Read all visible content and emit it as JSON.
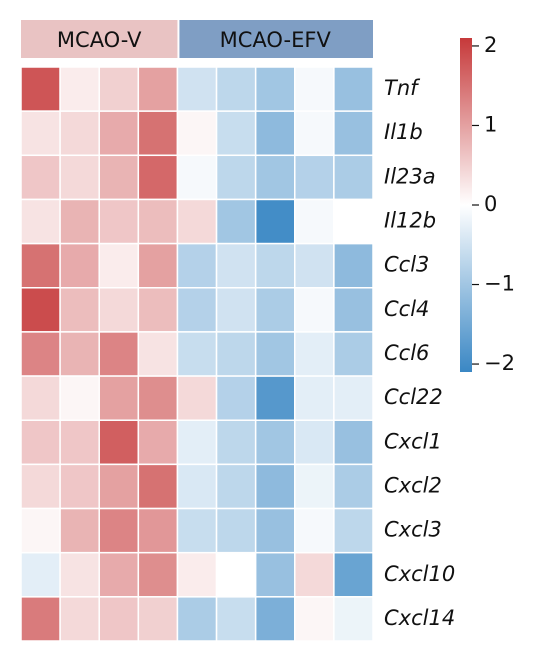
{
  "chart_data": {
    "type": "heatmap",
    "groups": [
      {
        "name": "MCAO-V",
        "columns": 4,
        "color": "#e9c3c3"
      },
      {
        "name": "MCAO-EFV",
        "columns": 5,
        "color": "#7f9ec4"
      }
    ],
    "rows": [
      "Tnf",
      "Il1b",
      "Il23a",
      "Il12b",
      "Ccl3",
      "Ccl4",
      "Ccl6",
      "Ccl22",
      "Cxcl1",
      "Cxcl2",
      "Cxcl3",
      "Cxcl10",
      "Cxcl14"
    ],
    "values": [
      [
        1.8,
        0.2,
        0.5,
        1.0,
        -0.5,
        -0.7,
        -1.0,
        -0.1,
        -1.1
      ],
      [
        0.3,
        0.4,
        0.9,
        1.5,
        0.1,
        -0.6,
        -1.2,
        -0.1,
        -1.1
      ],
      [
        0.6,
        0.4,
        0.8,
        1.6,
        -0.1,
        -0.7,
        -1.0,
        -0.8,
        -0.9
      ],
      [
        0.3,
        0.8,
        0.6,
        0.7,
        0.4,
        -1.0,
        -2.0,
        -0.1,
        0.0
      ],
      [
        1.5,
        0.9,
        0.2,
        1.0,
        -0.8,
        -0.5,
        -0.7,
        -0.5,
        -1.2
      ],
      [
        1.9,
        0.7,
        0.4,
        0.7,
        -0.8,
        -0.5,
        -0.9,
        -0.1,
        -1.1
      ],
      [
        1.3,
        0.8,
        1.3,
        0.3,
        -0.6,
        -0.7,
        -1.0,
        -0.3,
        -0.9
      ],
      [
        0.4,
        0.1,
        1.0,
        1.2,
        0.4,
        -0.8,
        -1.8,
        -0.3,
        -0.3
      ],
      [
        0.6,
        0.6,
        1.7,
        0.9,
        -0.3,
        -0.7,
        -1.0,
        -0.4,
        -1.1
      ],
      [
        0.4,
        0.6,
        1.0,
        1.5,
        -0.4,
        -0.7,
        -1.2,
        -0.2,
        -0.9
      ],
      [
        0.1,
        0.8,
        1.3,
        1.1,
        -0.6,
        -0.7,
        -1.1,
        -0.1,
        -0.7
      ],
      [
        -0.3,
        0.3,
        0.9,
        1.2,
        0.2,
        0.0,
        -1.1,
        0.4,
        -1.6
      ],
      [
        1.4,
        0.4,
        0.6,
        0.5,
        -0.9,
        -0.6,
        -1.4,
        0.1,
        -0.2
      ]
    ],
    "colorscale": [
      "#3a87c4",
      "#ffffff",
      "#c6393a"
    ],
    "zlim": [
      -2.1,
      2.1
    ],
    "zticks": [
      {
        "value": -2,
        "label": "−2"
      },
      {
        "value": -1,
        "label": "−1"
      },
      0,
      1,
      2
    ]
  }
}
